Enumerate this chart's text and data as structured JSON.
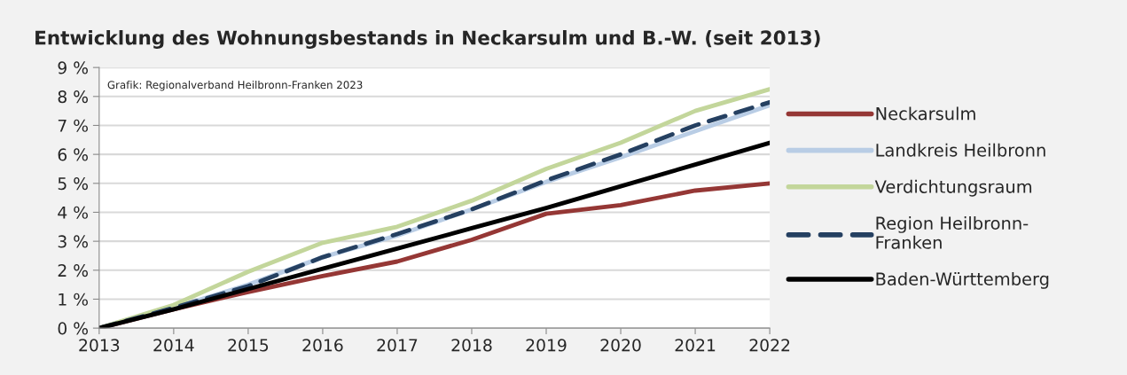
{
  "chart_data": {
    "type": "line",
    "title": "Entwicklung des Wohnungsbestands in Neckarsulm und B.-W. (seit 2013)",
    "x": [
      2013,
      2014,
      2015,
      2016,
      2017,
      2018,
      2019,
      2020,
      2021,
      2022
    ],
    "series": [
      {
        "name": "Neckarsulm",
        "color": "#953735",
        "values": [
          0,
          0.65,
          1.25,
          1.8,
          2.3,
          3.05,
          3.95,
          4.25,
          4.75,
          5.0
        ]
      },
      {
        "name": "Landkreis Heilbronn",
        "color": "#b9cde5",
        "values": [
          0,
          0.7,
          1.5,
          2.45,
          3.2,
          4.1,
          5.05,
          5.9,
          6.8,
          7.7
        ]
      },
      {
        "name": "Verdichtungsraum",
        "color": "#c3d69b",
        "values": [
          0,
          0.8,
          1.95,
          2.95,
          3.5,
          4.4,
          5.5,
          6.4,
          7.5,
          8.25
        ]
      },
      {
        "name": "Region Heilbronn-\nFranken",
        "color": "#254061",
        "values": [
          0,
          0.7,
          1.45,
          2.45,
          3.25,
          4.1,
          5.1,
          6.0,
          7.0,
          7.8
        ],
        "line_style": "dashed"
      },
      {
        "name": "Baden-Württemberg",
        "color": "#000000",
        "values": [
          0,
          0.65,
          1.35,
          2.05,
          2.75,
          3.45,
          4.15,
          4.9,
          5.65,
          6.4
        ]
      }
    ],
    "xlim": [
      2013,
      2022
    ],
    "xticks": [
      2013,
      2014,
      2015,
      2016,
      2017,
      2018,
      2019,
      2020,
      2021,
      2022
    ],
    "ylim": [
      0,
      9
    ],
    "yticks": [
      {
        "value": 0,
        "label": "0 %"
      },
      {
        "value": 1,
        "label": "1 %"
      },
      {
        "value": 2,
        "label": "2 %"
      },
      {
        "value": 3,
        "label": "3 %"
      },
      {
        "value": 4,
        "label": "4 %"
      },
      {
        "value": 5,
        "label": "5 %"
      },
      {
        "value": 6,
        "label": "6 %"
      },
      {
        "value": 7,
        "label": "7 %"
      },
      {
        "value": 8,
        "label": "8 %"
      },
      {
        "value": 9,
        "label": "9 %"
      }
    ],
    "annotations": [
      "Grafik: Regionalverband Heilbronn-Franken 2023"
    ],
    "grid": "y",
    "legend": "right",
    "marker": "none",
    "line_style": "solid"
  }
}
